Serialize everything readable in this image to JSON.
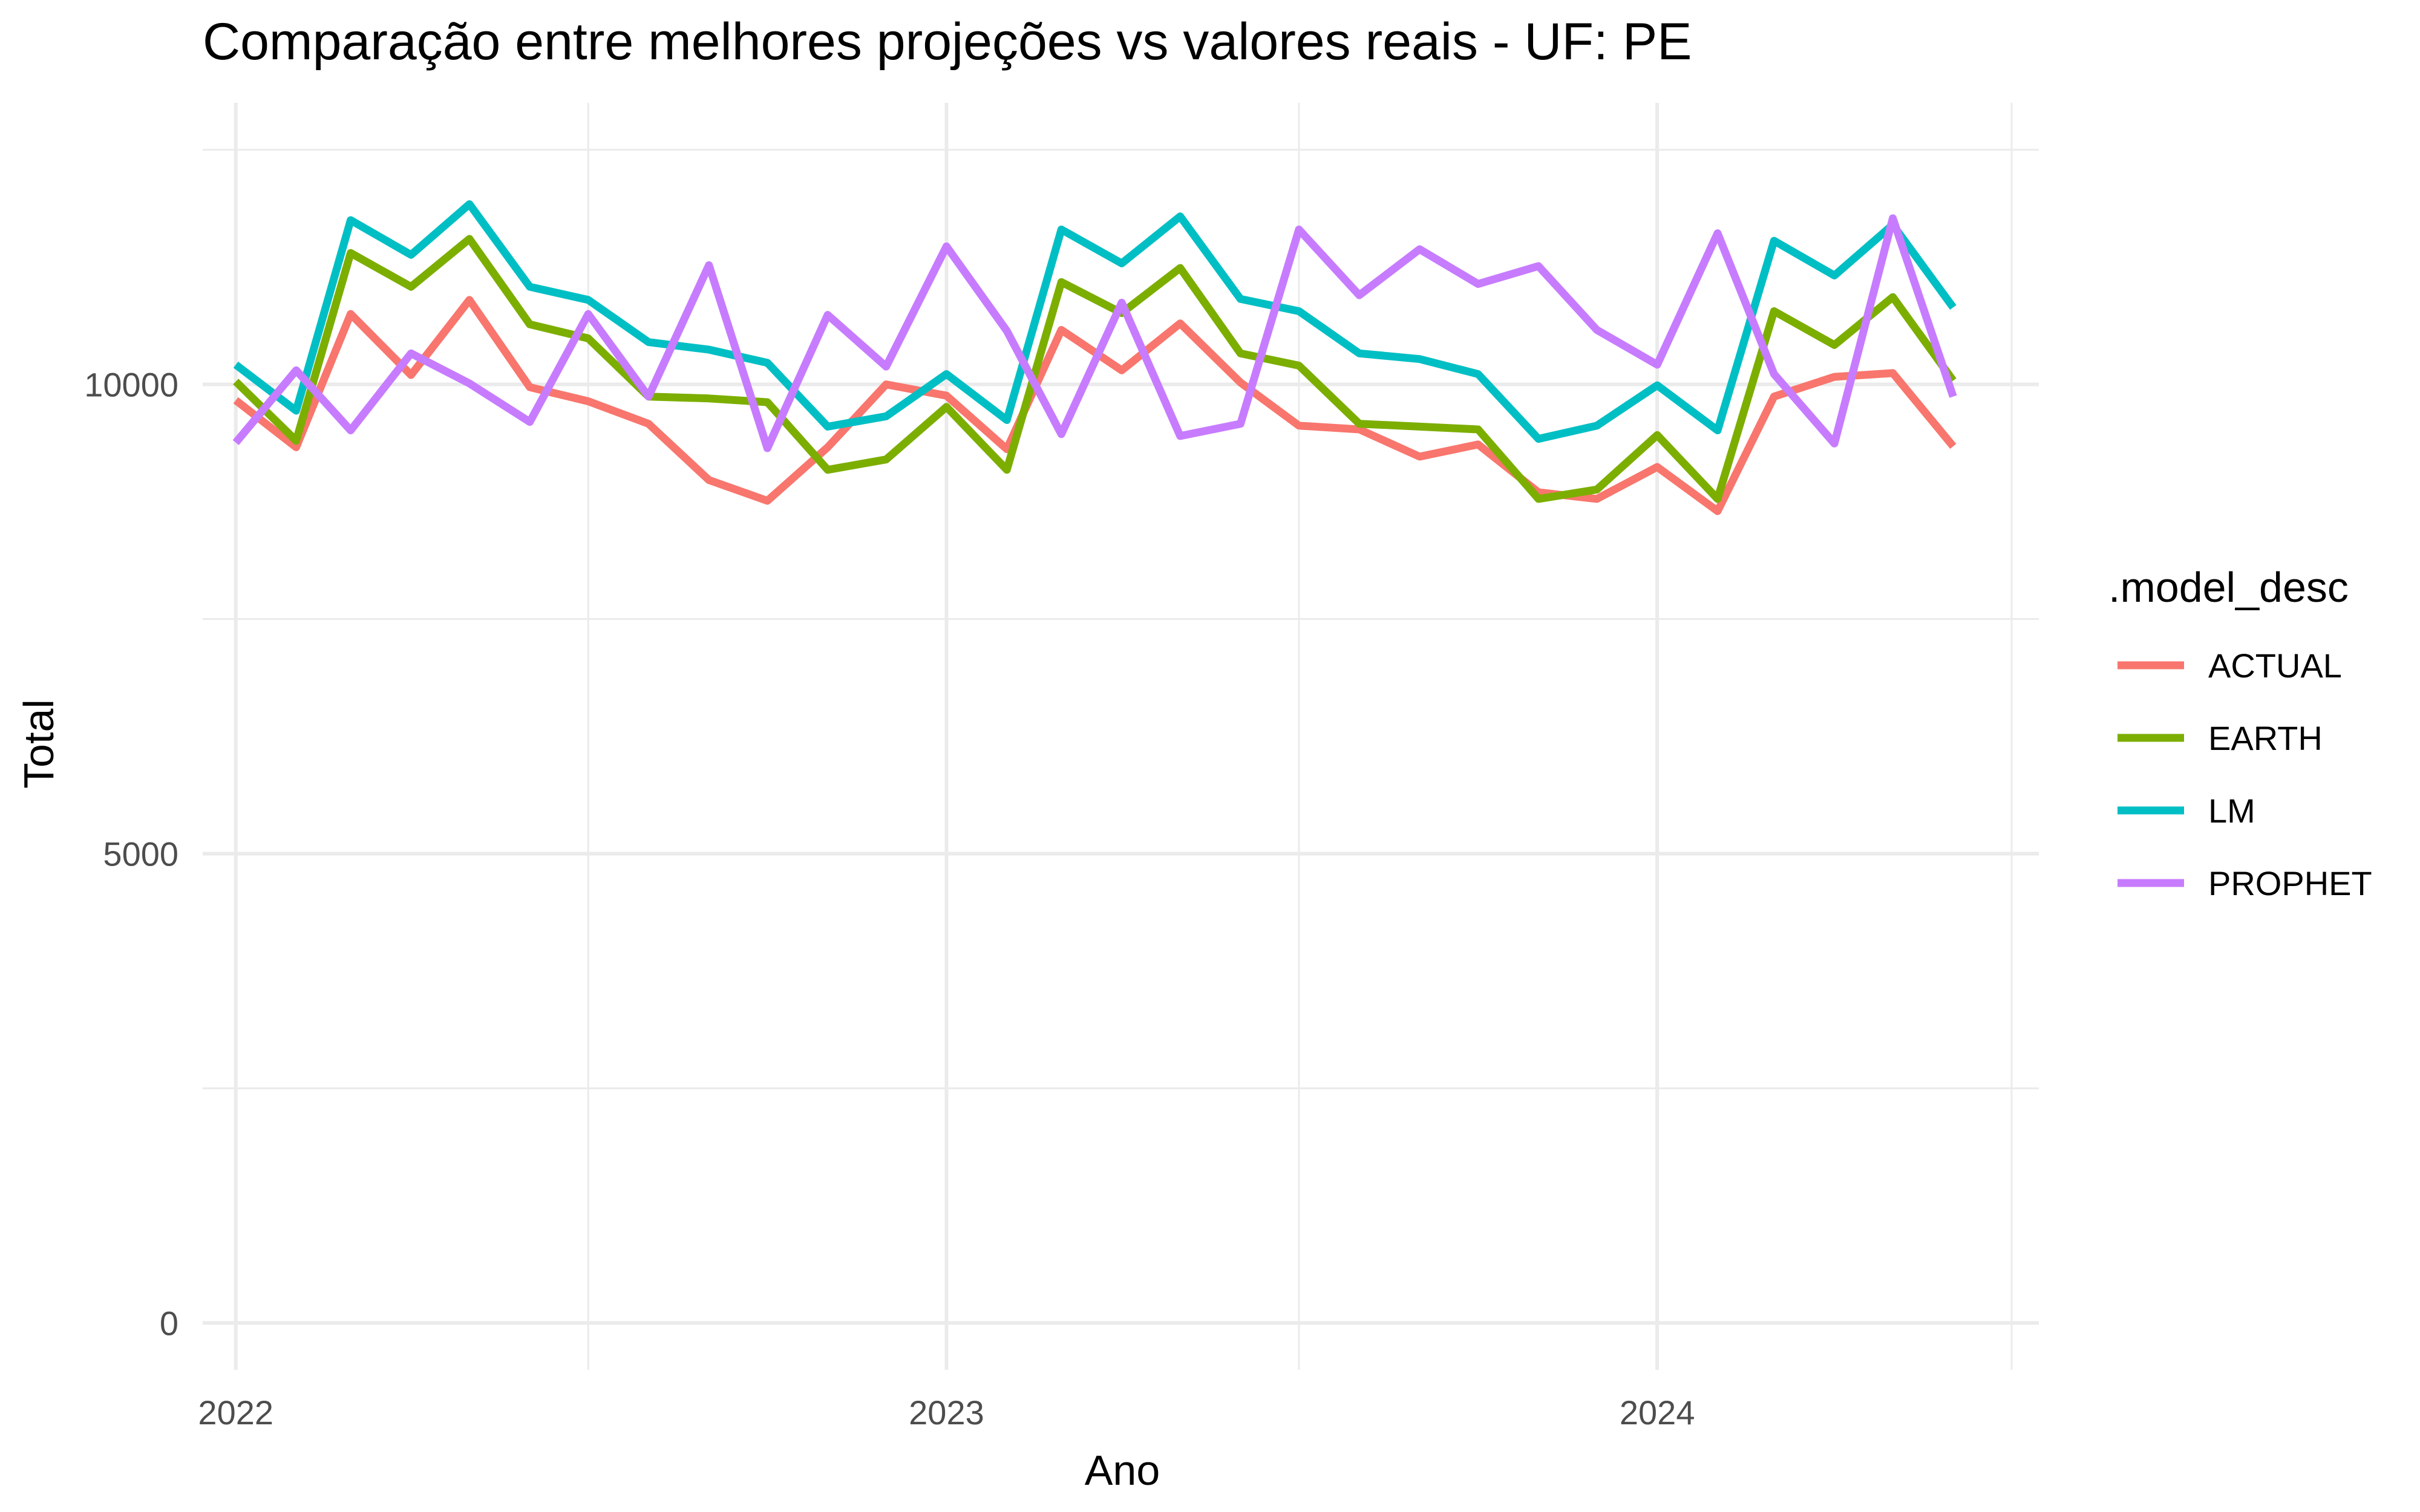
{
  "chart_data": {
    "type": "line",
    "title": "Comparação entre melhores projeções vs valores reais - UF: PE",
    "xlabel": "Ano",
    "ylabel": "Total",
    "x": [
      "2022-01",
      "2022-02",
      "2022-03",
      "2022-04",
      "2022-05",
      "2022-06",
      "2022-07",
      "2022-08",
      "2022-09",
      "2022-10",
      "2022-11",
      "2022-12",
      "2023-01",
      "2023-02",
      "2023-03",
      "2023-04",
      "2023-05",
      "2023-06",
      "2023-07",
      "2023-08",
      "2023-09",
      "2023-10",
      "2023-11",
      "2023-12",
      "2024-01",
      "2024-02",
      "2024-03",
      "2024-04",
      "2024-05",
      "2024-06"
    ],
    "xticks": [
      "2022",
      "2023",
      "2024"
    ],
    "yticks": [
      0,
      5000,
      10000
    ],
    "xlim": [
      "2021-12-15",
      "2024-07-15"
    ],
    "ylim": [
      -500,
      13000
    ],
    "grid": true,
    "legend": {
      "title": ".model_desc",
      "position": "right"
    },
    "series": [
      {
        "name": "ACTUAL",
        "color": "#F8766D",
        "values": [
          9830,
          9330,
          10750,
          10100,
          10900,
          9970,
          9820,
          9580,
          8980,
          8760,
          9330,
          10000,
          9880,
          9310,
          10580,
          10150,
          10650,
          10020,
          9560,
          9520,
          9230,
          9360,
          8850,
          8780,
          9120,
          8650,
          9870,
          10080,
          10120,
          9340
        ]
      },
      {
        "name": "EARTH",
        "color": "#7CAE00",
        "values": [
          10030,
          9400,
          11400,
          11040,
          11550,
          10640,
          10490,
          9870,
          9850,
          9810,
          9090,
          9200,
          9760,
          9090,
          11090,
          10760,
          11240,
          10330,
          10200,
          9580,
          9550,
          9520,
          8780,
          8880,
          9460,
          8780,
          10780,
          10420,
          10930,
          10040
        ]
      },
      {
        "name": "LM",
        "color": "#00BFC4",
        "values": [
          10210,
          9720,
          11750,
          11380,
          11920,
          11040,
          10900,
          10450,
          10370,
          10230,
          9550,
          9660,
          10110,
          9620,
          11650,
          11290,
          11790,
          10910,
          10780,
          10330,
          10270,
          10110,
          9420,
          9560,
          9990,
          9510,
          11530,
          11160,
          11700,
          10820
        ]
      },
      {
        "name": "PROPHET",
        "color": "#C77CFF",
        "values": [
          9380,
          10150,
          9510,
          10330,
          10010,
          9600,
          10750,
          9870,
          11270,
          9320,
          10740,
          10190,
          11470,
          10570,
          9470,
          10870,
          9450,
          9580,
          11650,
          10950,
          11440,
          11070,
          11260,
          10580,
          10210,
          11610,
          10110,
          9370,
          11770,
          9870
        ]
      }
    ]
  }
}
